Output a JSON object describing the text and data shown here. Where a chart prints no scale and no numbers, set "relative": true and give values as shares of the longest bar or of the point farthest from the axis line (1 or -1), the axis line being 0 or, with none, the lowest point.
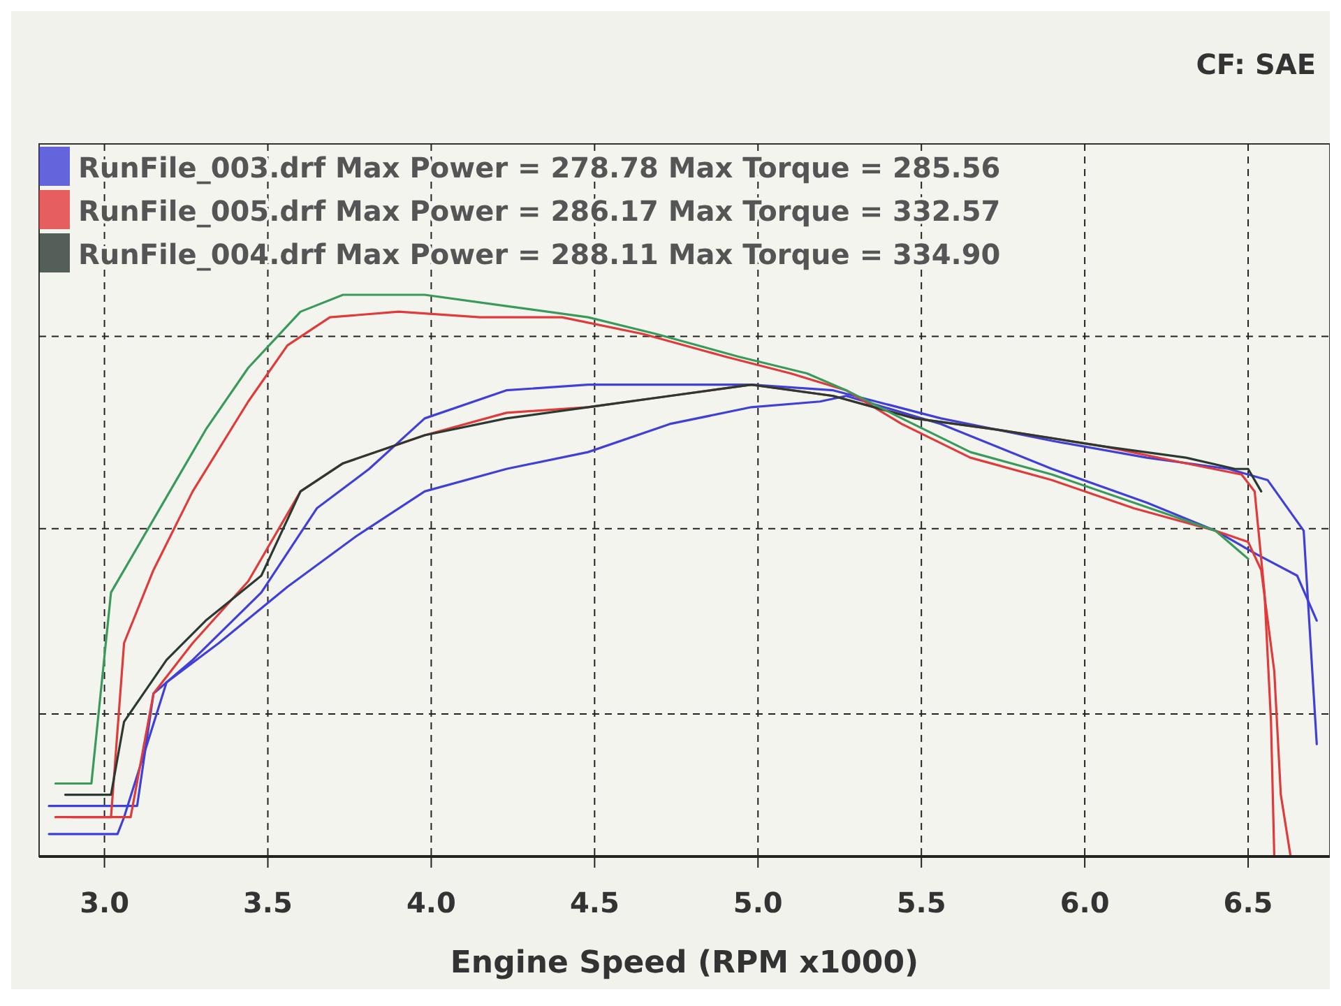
{
  "chart_data": {
    "type": "line",
    "relative": true,
    "xlabel": "Engine Speed (RPM x1000)",
    "xlim": [
      2.8,
      6.75
    ],
    "xticks": [
      {
        "value": 3,
        "label": "3.0"
      },
      3.5,
      {
        "value": 4,
        "label": "4.0"
      },
      4.5,
      {
        "value": 5,
        "label": "5.0"
      },
      5.5,
      {
        "value": 6,
        "label": "6.0"
      },
      6.5
    ],
    "grid": true,
    "line_style": "solid",
    "marker": "none",
    "legend": "top left",
    "annotations": [
      "CF: SAE"
    ],
    "series": [
      {
        "name": "RunFile_003.drf Max Power = 278.78 Max Torque = 285.56",
        "color": "#4040d8",
        "x": [
          2.83,
          3.04,
          3.06,
          3.19,
          3.35,
          3.56,
          3.77,
          3.98,
          4.23,
          4.48,
          4.73,
          4.98,
          5.19,
          5.27,
          5.56,
          5.9,
          6.19,
          6.4,
          6.52,
          6.65,
          6.71
        ],
        "values": [
          0.04,
          0.04,
          0.07,
          0.31,
          0.38,
          0.48,
          0.57,
          0.65,
          0.69,
          0.72,
          0.77,
          0.8,
          0.81,
          0.82,
          0.77,
          0.69,
          0.63,
          0.58,
          0.54,
          0.5,
          0.42
        ]
      },
      {
        "color": "#4040d8",
        "x": [
          2.83,
          3.1,
          3.15,
          3.27,
          3.48,
          3.65,
          3.81,
          3.98,
          4.23,
          4.48,
          4.73,
          4.98,
          5.23,
          5.56,
          5.9,
          6.19,
          6.44,
          6.56,
          6.67,
          6.71
        ],
        "values": [
          0.09,
          0.09,
          0.29,
          0.35,
          0.47,
          0.62,
          0.69,
          0.78,
          0.83,
          0.84,
          0.84,
          0.84,
          0.83,
          0.78,
          0.74,
          0.71,
          0.69,
          0.67,
          0.58,
          0.2
        ]
      },
      {
        "name": "RunFile_005.drf Max Power = 286.17 Max Torque = 332.57",
        "color": "#e03a3a",
        "x": [
          2.9,
          3.08,
          3.15,
          3.27,
          3.44,
          3.6,
          3.73,
          3.98,
          4.23,
          4.48,
          4.73,
          4.98,
          5.23,
          5.48,
          5.73,
          6.06,
          6.31,
          6.48,
          6.52,
          6.55,
          6.57,
          6.58
        ],
        "values": [
          0.07,
          0.07,
          0.29,
          0.38,
          0.49,
          0.65,
          0.7,
          0.75,
          0.79,
          0.8,
          0.82,
          0.84,
          0.82,
          0.78,
          0.76,
          0.73,
          0.7,
          0.68,
          0.65,
          0.47,
          0.24,
          0.0
        ]
      },
      {
        "color": "#e03a3a",
        "x": [
          2.85,
          3.02,
          3.06,
          3.15,
          3.27,
          3.44,
          3.56,
          3.69,
          3.9,
          4.15,
          4.4,
          4.65,
          4.9,
          5.1,
          5.27,
          5.44,
          5.65,
          5.9,
          6.15,
          6.4,
          6.5,
          6.54,
          6.58,
          6.6,
          6.63
        ],
        "values": [
          0.07,
          0.07,
          0.38,
          0.51,
          0.65,
          0.81,
          0.91,
          0.96,
          0.97,
          0.96,
          0.96,
          0.93,
          0.89,
          0.86,
          0.83,
          0.77,
          0.71,
          0.67,
          0.62,
          0.58,
          0.56,
          0.51,
          0.33,
          0.11,
          0.0
        ]
      },
      {
        "name": "RunFile_004.drf Max Power = 288.11 Max Torque = 334.90",
        "color": "#2a3a32",
        "x": [
          2.88,
          3.02,
          3.06,
          3.19,
          3.31,
          3.48,
          3.6,
          3.73,
          3.98,
          4.23,
          4.48,
          4.73,
          4.98,
          5.23,
          5.48,
          5.73,
          6.06,
          6.31,
          6.46,
          6.5,
          6.54
        ],
        "values": [
          0.11,
          0.11,
          0.24,
          0.35,
          0.42,
          0.5,
          0.65,
          0.7,
          0.75,
          0.78,
          0.8,
          0.82,
          0.84,
          0.82,
          0.78,
          0.76,
          0.73,
          0.71,
          0.69,
          0.69,
          0.65
        ]
      },
      {
        "color": "#3a9a5a",
        "x": [
          2.85,
          2.96,
          3.02,
          3.15,
          3.31,
          3.44,
          3.6,
          3.73,
          3.98,
          4.23,
          4.48,
          4.69,
          4.94,
          5.15,
          5.27,
          5.44,
          5.65,
          5.9,
          6.15,
          6.4,
          6.5
        ],
        "values": [
          0.13,
          0.13,
          0.47,
          0.6,
          0.76,
          0.87,
          0.97,
          1.0,
          1.0,
          0.98,
          0.96,
          0.93,
          0.89,
          0.86,
          0.83,
          0.78,
          0.72,
          0.68,
          0.63,
          0.58,
          0.53
        ]
      }
    ]
  }
}
